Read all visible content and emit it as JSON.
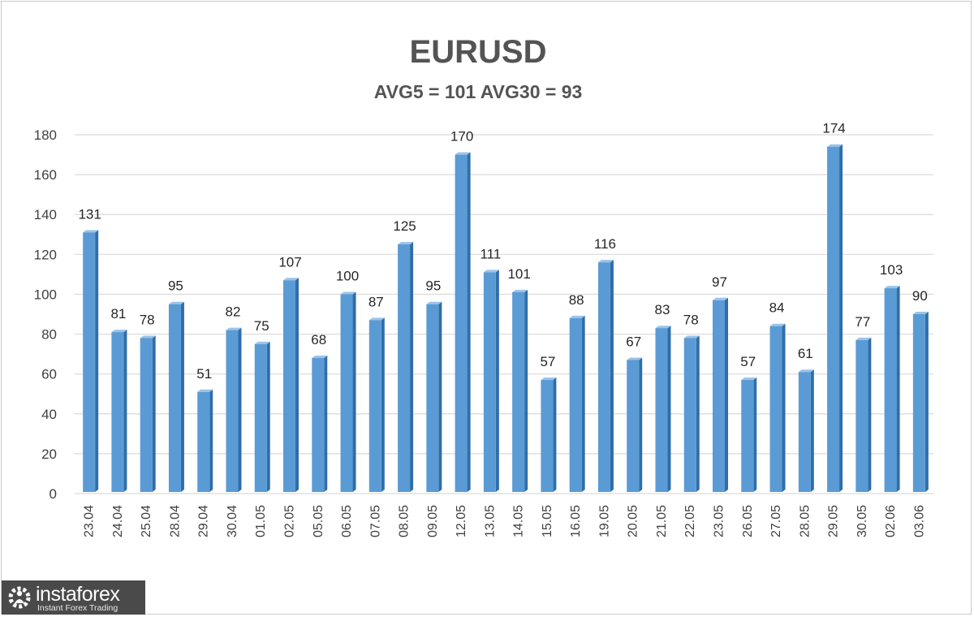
{
  "chart_data": {
    "type": "bar",
    "title": "EURUSD",
    "subtitle": "AVG5 = 101 AVG30 = 93",
    "xlabel": "",
    "ylabel": "",
    "ylim": [
      0,
      180
    ],
    "yticks": [
      0,
      20,
      40,
      60,
      80,
      100,
      120,
      140,
      160,
      180
    ],
    "grid": true,
    "legend": "none",
    "categories": [
      "23.04",
      "24.04",
      "25.04",
      "28.04",
      "29.04",
      "30.04",
      "01.05",
      "02.05",
      "05.05",
      "06.05",
      "07.05",
      "08.05",
      "09.05",
      "12.05",
      "13.05",
      "14.05",
      "15.05",
      "16.05",
      "19.05",
      "20.05",
      "21.05",
      "22.05",
      "23.05",
      "26.05",
      "27.05",
      "28.05",
      "29.05",
      "30.05",
      "02.06",
      "03.06"
    ],
    "values": [
      131,
      81,
      78,
      95,
      51,
      82,
      75,
      107,
      68,
      100,
      87,
      125,
      95,
      170,
      111,
      101,
      57,
      88,
      116,
      67,
      83,
      78,
      97,
      57,
      84,
      61,
      174,
      77,
      103,
      90
    ],
    "colors": {
      "bar_front": "#5b9bd5",
      "bar_side": "#2f6ea8",
      "bar_top": "#9cc3ea",
      "grid": "#d9d9d9"
    }
  },
  "logo": {
    "name": "instaforex",
    "tagline": "Instant Forex Trading"
  }
}
